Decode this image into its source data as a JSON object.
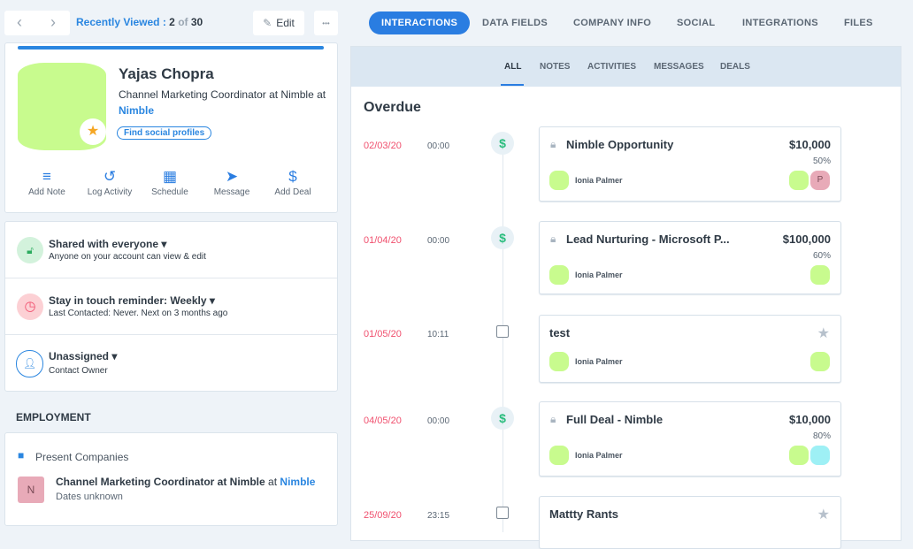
{
  "nav": {
    "recently_label": "Recently Viewed :",
    "current": "2",
    "of": "of",
    "total": "30",
    "edit": "Edit",
    "more": "•••"
  },
  "tabs": [
    "INTERACTIONS",
    "DATA FIELDS",
    "COMPANY INFO",
    "SOCIAL",
    "INTEGRATIONS",
    "FILES"
  ],
  "profile": {
    "name": "Yajas Chopra",
    "title": "Channel Marketing Coordinator at Nimble at",
    "company": "Nimble",
    "social_btn": "Find social profiles",
    "actions": [
      {
        "label": "Add Note",
        "icon": "≡"
      },
      {
        "label": "Log Activity",
        "icon": "↺"
      },
      {
        "label": "Schedule",
        "icon": "▦"
      },
      {
        "label": "Message",
        "icon": "➤"
      },
      {
        "label": "Add Deal",
        "icon": "$"
      }
    ]
  },
  "settings": [
    {
      "title": "Shared with everyone",
      "sub": "Anyone on your account can view & edit",
      "icon": "unlock-icon"
    },
    {
      "title": "Stay in touch reminder: Weekly",
      "sub": "Last Contacted: Never. Next on 3 months ago",
      "icon": "clock-icon"
    },
    {
      "title": "Unassigned",
      "sub": "Contact Owner",
      "icon": "user-icon"
    }
  ],
  "employment": {
    "heading": "EMPLOYMENT",
    "present": "Present Companies",
    "initial": "N",
    "role": "Channel Marketing Coordinator at Nimble",
    "at": "at",
    "company": "Nimble",
    "dates": "Dates unknown"
  },
  "subtabs": [
    "ALL",
    "NOTES",
    "ACTIVITIES",
    "MESSAGES",
    "DEALS"
  ],
  "section": "Overdue",
  "items": [
    {
      "date": "02/03/20",
      "time": "00:00",
      "type": "deal",
      "title": "Nimble Opportunity",
      "amount": "$10,000",
      "pct": "50%",
      "owner": "Ionia Palmer",
      "extra": "P"
    },
    {
      "date": "01/04/20",
      "time": "00:00",
      "type": "deal",
      "title": "Lead Nurturing - Microsoft P...",
      "amount": "$100,000",
      "pct": "60%",
      "owner": "Ionia Palmer"
    },
    {
      "date": "01/05/20",
      "time": "10:11",
      "type": "task",
      "title": "test",
      "owner": "Ionia Palmer"
    },
    {
      "date": "04/05/20",
      "time": "00:00",
      "type": "deal",
      "title": "Full Deal - Nimble",
      "amount": "$10,000",
      "pct": "80%",
      "owner": "Ionia Palmer",
      "extra": ""
    },
    {
      "date": "25/09/20",
      "time": "23:15",
      "type": "task",
      "title": "Mattty Rants"
    }
  ],
  "colors": {
    "accent": "#2a7de1",
    "overdue": "#f0506e",
    "avatar": "#c8fb8e"
  }
}
